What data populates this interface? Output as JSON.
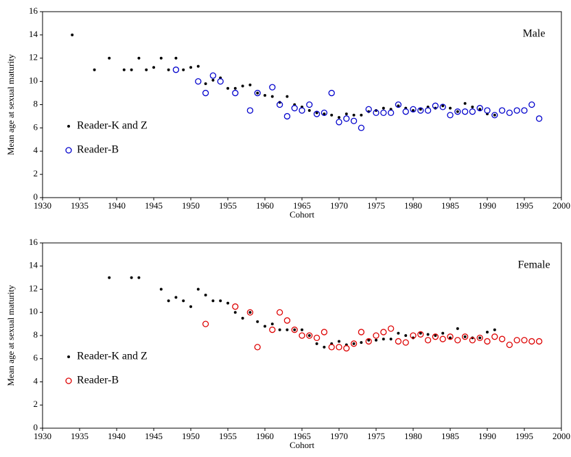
{
  "chart_data": [
    {
      "type": "scatter",
      "label": "Male",
      "xlabel": "Cohort",
      "ylabel": "Mean age at sexual maturity",
      "xlim": [
        1930,
        2000
      ],
      "xticks": [
        1930,
        1935,
        1940,
        1945,
        1950,
        1955,
        1960,
        1965,
        1970,
        1975,
        1980,
        1985,
        1990,
        1995,
        2000
      ],
      "ylim": [
        0,
        16
      ],
      "yticks": [
        0,
        2,
        4,
        6,
        8,
        10,
        12,
        14,
        16
      ],
      "legend": "lower left",
      "series": [
        {
          "name": "Reader-K and Z",
          "color": "#000000",
          "marker": "dot",
          "x": [
            1934,
            1937,
            1939,
            1941,
            1942,
            1943,
            1944,
            1945,
            1946,
            1947,
            1948,
            1949,
            1950,
            1951,
            1952,
            1953,
            1954,
            1955,
            1956,
            1957,
            1958,
            1959,
            1960,
            1961,
            1962,
            1963,
            1964,
            1965,
            1966,
            1967,
            1968,
            1969,
            1970,
            1971,
            1972,
            1973,
            1974,
            1975,
            1976,
            1977,
            1978,
            1979,
            1980,
            1981,
            1982,
            1983,
            1984,
            1985,
            1986,
            1987,
            1988,
            1989,
            1990,
            1991
          ],
          "values": [
            14,
            11,
            12,
            11,
            11,
            12,
            11,
            11.2,
            12,
            11,
            12,
            11,
            11.2,
            11.3,
            9.8,
            10.1,
            10.3,
            9.4,
            9.4,
            9.6,
            9.7,
            9.0,
            8.8,
            8.7,
            8.2,
            8.7,
            8.0,
            7.8,
            7.5,
            7.3,
            7.2,
            7.1,
            6.9,
            7.2,
            7.1,
            7.1,
            7.4,
            7.5,
            7.7,
            7.6,
            7.9,
            7.7,
            7.5,
            7.6,
            7.8,
            7.7,
            7.9,
            7.7,
            7.4,
            8.1,
            7.8,
            7.6,
            7.2,
            7.1
          ]
        },
        {
          "name": "Reader-B",
          "color": "#0000cc",
          "marker": "circle",
          "x": [
            1948,
            1951,
            1952,
            1953,
            1954,
            1956,
            1958,
            1959,
            1961,
            1962,
            1963,
            1964,
            1965,
            1966,
            1967,
            1968,
            1969,
            1970,
            1971,
            1972,
            1973,
            1974,
            1975,
            1976,
            1977,
            1978,
            1979,
            1980,
            1981,
            1982,
            1983,
            1984,
            1985,
            1986,
            1987,
            1988,
            1989,
            1990,
            1991,
            1992,
            1993,
            1994,
            1995,
            1996,
            1997
          ],
          "values": [
            11,
            10,
            9,
            10.5,
            10,
            9,
            7.5,
            9,
            9.5,
            8,
            7,
            7.7,
            7.5,
            8,
            7.2,
            7.3,
            9,
            6.5,
            6.8,
            6.6,
            6,
            7.6,
            7.3,
            7.3,
            7.3,
            8,
            7.4,
            7.6,
            7.5,
            7.5,
            7.9,
            7.8,
            7.1,
            7.4,
            7.4,
            7.4,
            7.7,
            7.5,
            7.1,
            7.5,
            7.3,
            7.5,
            7.5,
            8,
            6.8
          ]
        }
      ]
    },
    {
      "type": "scatter",
      "label": "Female",
      "xlabel": "Cohort",
      "ylabel": "Mean age at sexual maturity",
      "xlim": [
        1930,
        2000
      ],
      "xticks": [
        1930,
        1935,
        1940,
        1945,
        1950,
        1955,
        1960,
        1965,
        1970,
        1975,
        1980,
        1985,
        1990,
        1995,
        2000
      ],
      "ylim": [
        0,
        16
      ],
      "yticks": [
        0,
        2,
        4,
        6,
        8,
        10,
        12,
        14,
        16
      ],
      "legend": "lower left",
      "series": [
        {
          "name": "Reader-K and Z",
          "color": "#000000",
          "marker": "dot",
          "x": [
            1939,
            1942,
            1943,
            1946,
            1947,
            1948,
            1949,
            1950,
            1951,
            1952,
            1953,
            1954,
            1955,
            1956,
            1957,
            1958,
            1959,
            1960,
            1961,
            1962,
            1963,
            1964,
            1965,
            1966,
            1967,
            1968,
            1969,
            1970,
            1971,
            1972,
            1973,
            1974,
            1975,
            1976,
            1977,
            1978,
            1979,
            1980,
            1981,
            1982,
            1983,
            1984,
            1985,
            1986,
            1987,
            1988,
            1989,
            1990,
            1991
          ],
          "values": [
            13,
            13,
            13,
            12,
            11,
            11.3,
            11,
            10.5,
            12,
            11.5,
            11,
            11,
            10.8,
            10,
            9.5,
            10,
            9.2,
            8.8,
            9,
            8.5,
            8.5,
            8.5,
            8.5,
            8,
            7.3,
            7,
            7.3,
            7.5,
            7.2,
            7.3,
            7.4,
            7.6,
            7.6,
            7.7,
            7.7,
            8.2,
            8,
            7.8,
            8.2,
            8.1,
            8,
            8.2,
            7.8,
            8.6,
            7.9,
            7.8,
            7.8,
            8.3,
            8.5
          ]
        },
        {
          "name": "Reader-B",
          "color": "#dd0000",
          "marker": "circle",
          "x": [
            1952,
            1956,
            1958,
            1959,
            1961,
            1962,
            1963,
            1964,
            1965,
            1966,
            1967,
            1968,
            1969,
            1970,
            1971,
            1972,
            1973,
            1974,
            1975,
            1976,
            1977,
            1978,
            1979,
            1980,
            1981,
            1982,
            1983,
            1984,
            1985,
            1986,
            1987,
            1988,
            1989,
            1990,
            1991,
            1992,
            1993,
            1994,
            1995,
            1996,
            1997
          ],
          "values": [
            9,
            10.5,
            10,
            7,
            8.5,
            10,
            9.3,
            8.5,
            8,
            8,
            7.8,
            8.3,
            7,
            7,
            6.9,
            7.3,
            8.3,
            7.5,
            8,
            8.3,
            8.6,
            7.5,
            7.4,
            8,
            8.1,
            7.6,
            7.9,
            7.7,
            7.9,
            7.6,
            7.9,
            7.6,
            7.8,
            7.5,
            7.9,
            7.7,
            7.2,
            7.6,
            7.6,
            7.5,
            7.5
          ]
        }
      ]
    }
  ]
}
